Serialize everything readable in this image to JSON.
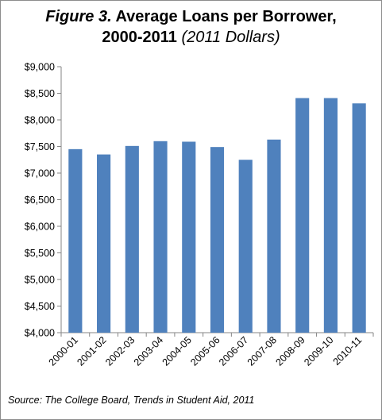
{
  "chart_data": {
    "type": "bar",
    "title_lead": "Figure 3.",
    "title_main": "Average Loans per Borrower,",
    "title_line2": "2000-2011",
    "title_units": "(2011 Dollars)",
    "xlabel": "",
    "ylabel": "",
    "categories": [
      "2000-01",
      "2001-02",
      "2002-03",
      "2003-04",
      "2004-05",
      "2005-06",
      "2006-07",
      "2007-08",
      "2008-09",
      "2009-10",
      "2010-11"
    ],
    "series": [
      {
        "values": [
          7450,
          7350,
          7510,
          7600,
          7590,
          7490,
          7250,
          7630,
          8410,
          8410,
          8310
        ]
      }
    ],
    "ylim": [
      4000,
      9000
    ],
    "yticks": [
      4000,
      4500,
      5000,
      5500,
      6000,
      6500,
      7000,
      7500,
      8000,
      8500,
      9000
    ],
    "ytick_labels": [
      "$4,000",
      "$4,500",
      "$5,000",
      "$5,500",
      "$6,000",
      "$6,500",
      "$7,000",
      "$7,500",
      "$8,000",
      "$8,500",
      "$9,000"
    ],
    "grid": false,
    "bar_color": "#4f81bd",
    "source": "Source: The College Board, Trends in Student Aid, 2011"
  }
}
